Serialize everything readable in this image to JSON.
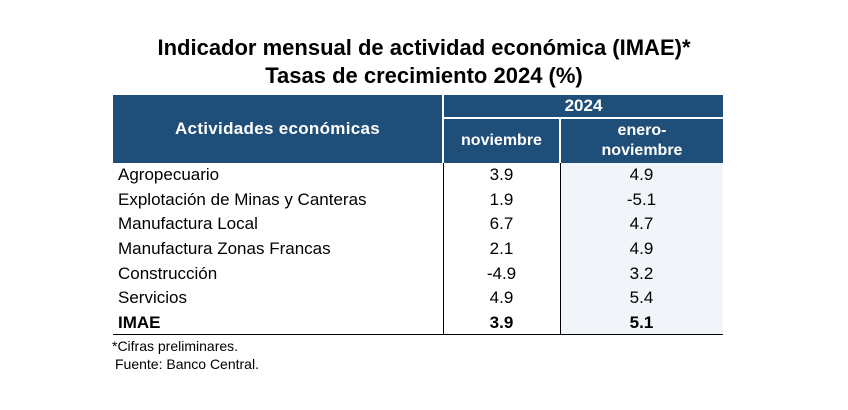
{
  "title_line1": "Indicador mensual de actividad económica (IMAE)*",
  "title_line2": "Tasas de crecimiento 2024 (%)",
  "header": {
    "activities": "Actividades económicas",
    "year": "2024",
    "col_nov": "noviembre",
    "col_ene_1": "enero-",
    "col_ene_2": "noviembre"
  },
  "rows": [
    {
      "name": "Agropecuario",
      "nov": "3.9",
      "ene_nov": "4.9"
    },
    {
      "name": "Explotación de Minas y Canteras",
      "nov": "1.9",
      "ene_nov": "-5.1"
    },
    {
      "name": "Manufactura Local",
      "nov": "6.7",
      "ene_nov": "4.7"
    },
    {
      "name": "Manufactura Zonas Francas",
      "nov": "2.1",
      "ene_nov": "4.9"
    },
    {
      "name": "Construcción",
      "nov": "-4.9",
      "ene_nov": "3.2"
    },
    {
      "name": "Servicios",
      "nov": "4.9",
      "ene_nov": "5.4"
    },
    {
      "name": "IMAE",
      "nov": "3.9",
      "ene_nov": "5.1"
    }
  ],
  "notes": {
    "preliminary": "*Cifras preliminares.",
    "source": "Fuente: Banco Central."
  },
  "colors": {
    "header_bg": "#1f4e79",
    "header_text": "#ffffff",
    "shade_col": "#f1f4f8"
  }
}
